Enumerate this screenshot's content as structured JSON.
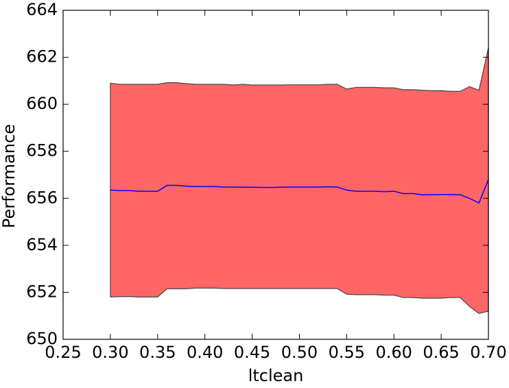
{
  "chart_data": {
    "type": "band-line",
    "xlabel": "ltclean",
    "ylabel": "Performance",
    "x": [
      0.3,
      0.31,
      0.32,
      0.33,
      0.34,
      0.35,
      0.36,
      0.37,
      0.38,
      0.39,
      0.4,
      0.41,
      0.42,
      0.43,
      0.44,
      0.45,
      0.46,
      0.47,
      0.48,
      0.49,
      0.5,
      0.51,
      0.52,
      0.53,
      0.54,
      0.55,
      0.56,
      0.57,
      0.58,
      0.59,
      0.6,
      0.61,
      0.62,
      0.63,
      0.64,
      0.65,
      0.66,
      0.67,
      0.68,
      0.69,
      0.7
    ],
    "mean": {
      "color": "#0000ff",
      "values": [
        656.35,
        656.33,
        656.33,
        656.3,
        656.3,
        656.3,
        656.55,
        656.55,
        656.52,
        656.5,
        656.5,
        656.5,
        656.48,
        656.48,
        656.47,
        656.47,
        656.46,
        656.46,
        656.47,
        656.48,
        656.48,
        656.48,
        656.48,
        656.49,
        656.48,
        656.35,
        656.3,
        656.3,
        656.3,
        656.28,
        656.3,
        656.2,
        656.2,
        656.15,
        656.15,
        656.16,
        656.16,
        656.15,
        656.0,
        655.8,
        656.8
      ]
    },
    "band": {
      "color": "#ff6666",
      "edge_color": "#444444",
      "upper": [
        660.9,
        660.85,
        660.85,
        660.85,
        660.85,
        660.85,
        660.92,
        660.92,
        660.88,
        660.85,
        660.85,
        660.85,
        660.85,
        660.82,
        660.85,
        660.82,
        660.82,
        660.82,
        660.82,
        660.83,
        660.83,
        660.83,
        660.83,
        660.85,
        660.85,
        660.65,
        660.72,
        660.72,
        660.72,
        660.7,
        660.7,
        660.62,
        660.62,
        660.6,
        660.58,
        660.58,
        660.55,
        660.55,
        660.75,
        660.6,
        662.4
      ],
      "lower": [
        651.8,
        651.82,
        651.82,
        651.8,
        651.8,
        651.8,
        652.15,
        652.15,
        652.15,
        652.18,
        652.18,
        652.18,
        652.16,
        652.16,
        652.16,
        652.16,
        652.16,
        652.16,
        652.16,
        652.16,
        652.16,
        652.16,
        652.16,
        652.16,
        652.16,
        651.92,
        651.9,
        651.9,
        651.9,
        651.88,
        651.88,
        651.78,
        651.78,
        651.75,
        651.75,
        651.75,
        651.78,
        651.78,
        651.4,
        651.1,
        651.2
      ]
    },
    "xlim": [
      0.25,
      0.7
    ],
    "xticks": [
      0.25,
      {
        "value": 0.3,
        "label": "0.30"
      },
      0.35,
      {
        "value": 0.4,
        "label": "0.40"
      },
      0.45,
      {
        "value": 0.5,
        "label": "0.50"
      },
      0.55,
      {
        "value": 0.6,
        "label": "0.60"
      },
      0.65,
      {
        "value": 0.7,
        "label": "0.70"
      }
    ],
    "ylim": [
      650,
      664
    ],
    "yticks": [
      650,
      652,
      654,
      656,
      658,
      660,
      662,
      664
    ],
    "grid": false
  }
}
